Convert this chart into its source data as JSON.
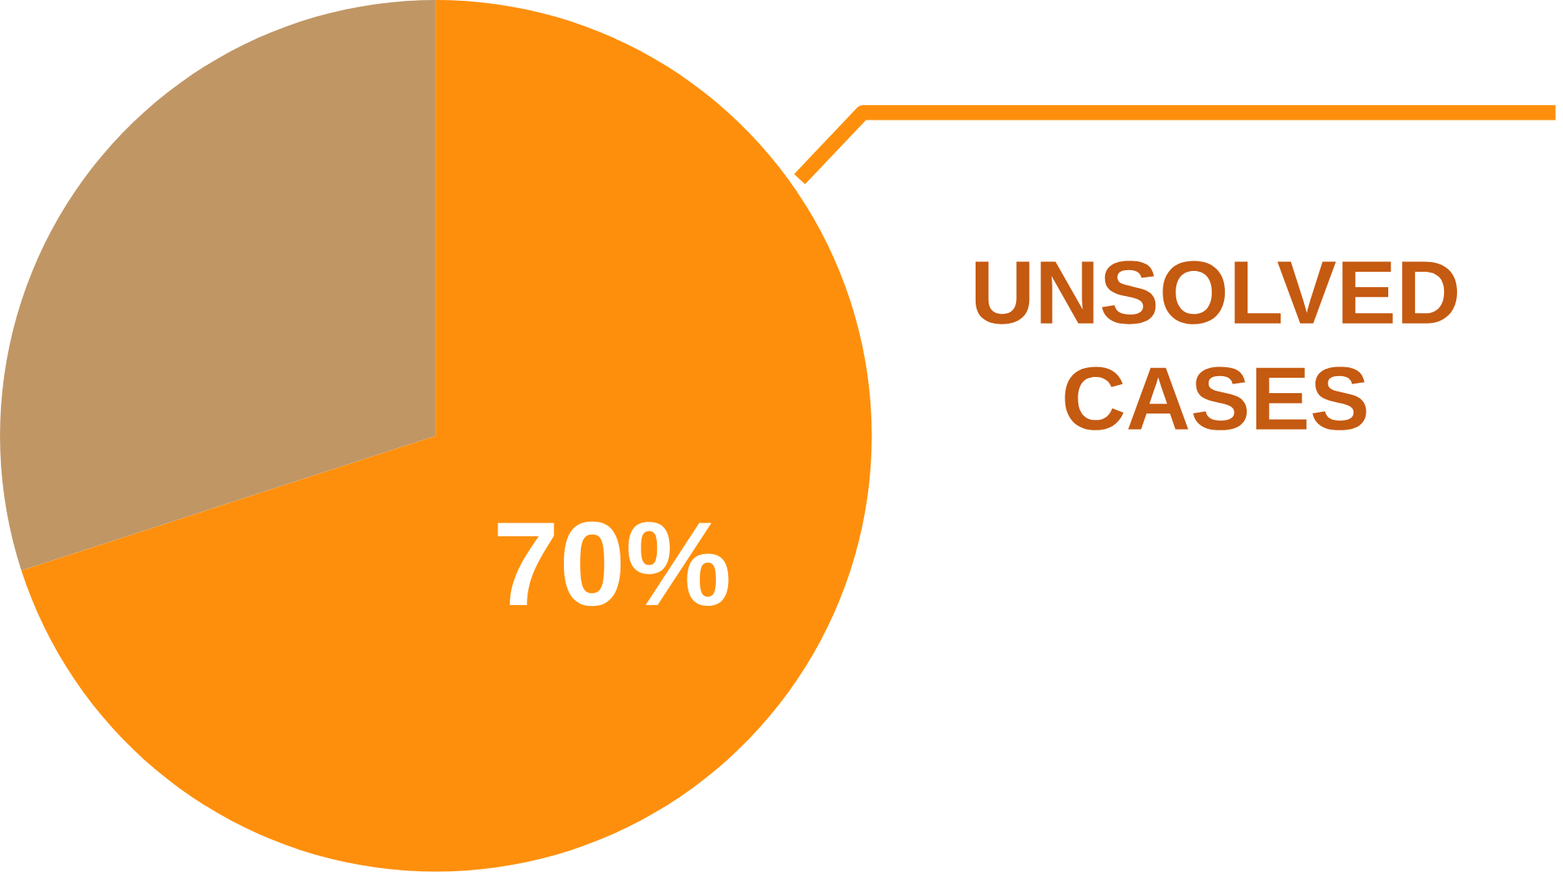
{
  "chart_data": {
    "type": "pie",
    "categories": [
      "UNSOLVED CASES",
      null
    ],
    "values": [
      70,
      30
    ],
    "colors": [
      "#fe8f0c",
      "#c09665"
    ],
    "value_labels": [
      "70%",
      null
    ]
  }
}
